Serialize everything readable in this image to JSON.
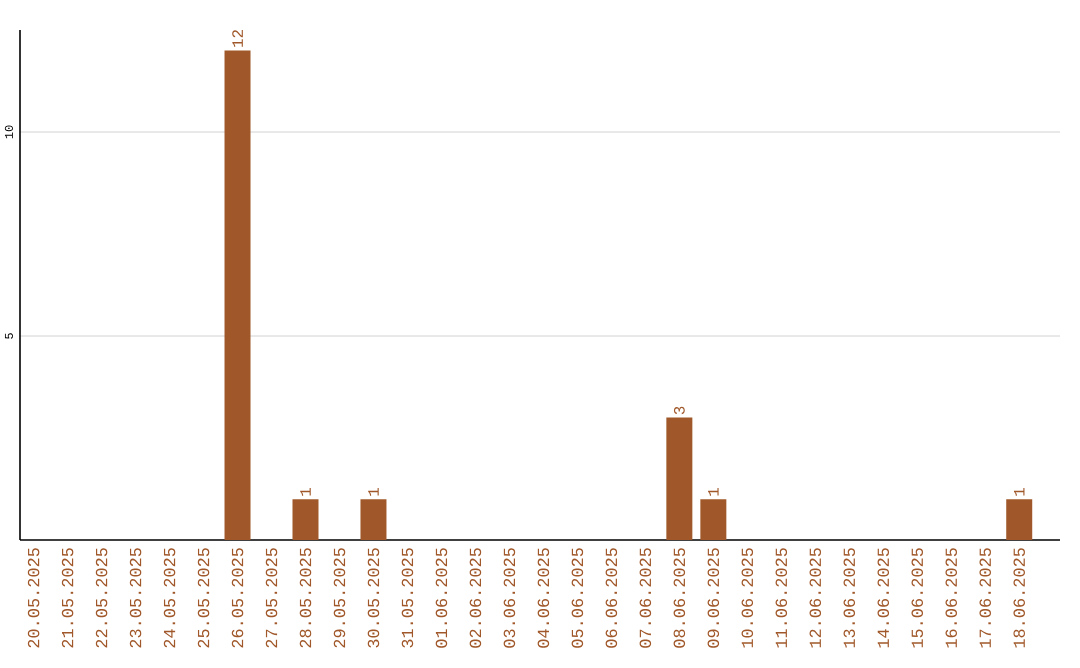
{
  "chart_data": {
    "type": "bar",
    "categories": [
      "20.05.2025",
      "21.05.2025",
      "22.05.2025",
      "23.05.2025",
      "24.05.2025",
      "25.05.2025",
      "26.05.2025",
      "27.05.2025",
      "28.05.2025",
      "29.05.2025",
      "30.05.2025",
      "31.05.2025",
      "01.06.2025",
      "02.06.2025",
      "03.06.2025",
      "04.06.2025",
      "05.06.2025",
      "06.06.2025",
      "07.06.2025",
      "08.06.2025",
      "09.06.2025",
      "10.06.2025",
      "11.06.2025",
      "12.06.2025",
      "13.06.2025",
      "14.06.2025",
      "15.06.2025",
      "16.06.2025",
      "17.06.2025",
      "18.06.2025"
    ],
    "values": [
      0,
      0,
      0,
      0,
      0,
      0,
      12,
      0,
      1,
      0,
      1,
      0,
      0,
      0,
      0,
      0,
      0,
      0,
      0,
      3,
      1,
      0,
      0,
      0,
      0,
      0,
      0,
      0,
      0,
      1
    ],
    "value_labels": [
      null,
      null,
      null,
      null,
      null,
      null,
      "12",
      null,
      "1",
      null,
      "1",
      null,
      null,
      null,
      null,
      null,
      null,
      null,
      null,
      "3",
      "1",
      null,
      null,
      null,
      null,
      null,
      null,
      null,
      null,
      "1"
    ],
    "color": "#a0582a",
    "ylim": [
      0,
      12.5
    ],
    "yticks": [
      5,
      10
    ],
    "grid": "y"
  }
}
